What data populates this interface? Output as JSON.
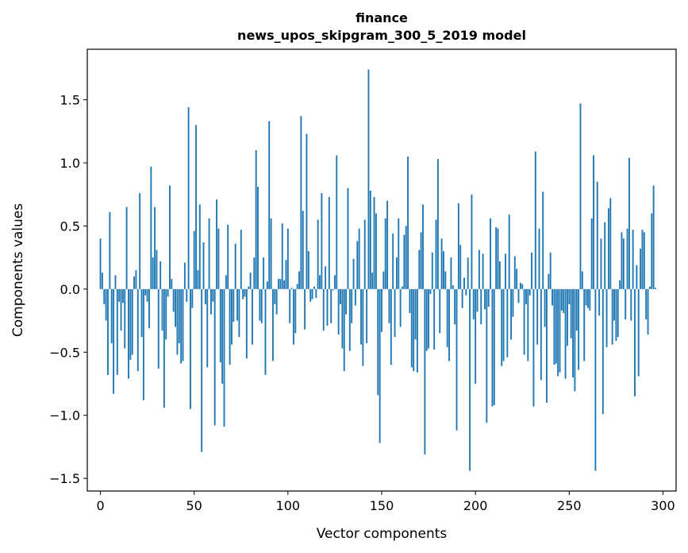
{
  "chart_data": {
    "type": "bar",
    "title_line1": "finance",
    "title_line2": "news_upos_skipgram_300_5_2019 model",
    "xlabel": "Vector components",
    "ylabel": "Components values",
    "xlim": [
      -7,
      307
    ],
    "ylim": [
      -1.6,
      1.9
    ],
    "xticks": [
      0,
      50,
      100,
      150,
      200,
      250,
      300
    ],
    "yticks": [
      -1.5,
      -1.0,
      -0.5,
      0.0,
      0.5,
      1.0,
      1.5
    ],
    "ytick_labels": [
      "−1.5",
      "−1.0",
      "−0.5",
      "0.0",
      "0.5",
      "1.0",
      "1.5"
    ],
    "bar_color": "#1f77b4",
    "values": [
      0.4,
      0.13,
      -0.12,
      -0.25,
      -0.68,
      0.61,
      -0.43,
      -0.83,
      0.11,
      -0.68,
      -0.1,
      -0.33,
      -0.11,
      -0.47,
      0.65,
      -0.71,
      -0.56,
      -0.52,
      0.1,
      0.15,
      -0.65,
      0.76,
      -0.38,
      -0.88,
      -0.05,
      -0.1,
      -0.31,
      0.97,
      0.25,
      0.65,
      0.31,
      -0.63,
      0.22,
      -0.33,
      -0.94,
      -0.4,
      -0.06,
      0.82,
      0.08,
      -0.18,
      -0.3,
      -0.52,
      -0.43,
      -0.59,
      -0.57,
      0.21,
      -0.1,
      1.44,
      -0.95,
      -0.15,
      0.46,
      1.3,
      0.15,
      0.67,
      -1.29,
      0.37,
      -0.12,
      -0.62,
      0.56,
      -0.2,
      -0.1,
      -1.08,
      0.71,
      0.48,
      -0.58,
      -0.75,
      -1.09,
      0.11,
      0.51,
      -0.6,
      -0.44,
      -0.26,
      0.36,
      -0.25,
      -0.38,
      0.47,
      -0.08,
      -0.06,
      -0.55,
      0.02,
      0.13,
      -0.44,
      0.25,
      1.1,
      0.81,
      -0.25,
      -0.27,
      0.25,
      -0.68,
      0.06,
      1.33,
      0.56,
      -0.57,
      -0.12,
      -0.2,
      0.08,
      0.08,
      0.52,
      0.07,
      0.23,
      0.48,
      -0.27,
      0.01,
      -0.44,
      -0.35,
      0.04,
      0.14,
      1.37,
      0.62,
      -0.32,
      1.23,
      0.3,
      -0.1,
      -0.08,
      0.02,
      -0.07,
      0.55,
      0.11,
      0.76,
      -0.33,
      0.18,
      -0.29,
      0.73,
      -0.27,
      -0.01,
      0.11,
      1.06,
      -0.36,
      -0.12,
      -0.47,
      -0.65,
      -0.2,
      0.8,
      -0.49,
      -0.27,
      0.24,
      -0.13,
      0.38,
      0.48,
      -0.44,
      -0.61,
      0.55,
      -0.43,
      1.74,
      0.78,
      0.13,
      0.73,
      0.6,
      -0.84,
      -1.22,
      -0.34,
      0.14,
      0.56,
      0.7,
      -0.27,
      -0.6,
      0.44,
      -0.38,
      0.25,
      0.56,
      -0.3,
      0.02,
      0.43,
      0.5,
      1.05,
      -0.19,
      -0.62,
      -0.65,
      -0.4,
      -0.66,
      0.31,
      0.45,
      0.67,
      -1.31,
      -0.49,
      -0.47,
      -0.04,
      0.29,
      -0.48,
      0.55,
      1.03,
      -0.35,
      0.4,
      0.3,
      0.14,
      -0.46,
      -0.57,
      0.25,
      0.03,
      -0.28,
      -1.12,
      0.68,
      0.35,
      -0.15,
      0.09,
      -0.05,
      0.25,
      -1.44,
      0.75,
      -0.24,
      -0.75,
      -0.18,
      0.31,
      -0.28,
      0.28,
      -0.16,
      -1.06,
      -0.14,
      0.56,
      -0.93,
      -0.92,
      0.49,
      0.48,
      0.22,
      -0.61,
      -0.57,
      0.28,
      -0.54,
      0.59,
      -0.4,
      -0.22,
      0.26,
      0.16,
      -0.11,
      0.05,
      0.04,
      -0.52,
      -0.12,
      -0.57,
      -0.05,
      0.29,
      -0.93,
      1.09,
      -0.44,
      0.48,
      -0.72,
      0.77,
      -0.3,
      -0.9,
      0.12,
      0.29,
      -0.13,
      -0.6,
      -0.59,
      -0.69,
      -0.66,
      -0.17,
      -0.19,
      -0.71,
      -0.45,
      -0.12,
      -0.39,
      -0.7,
      -0.81,
      -0.33,
      -0.64,
      1.47,
      0.14,
      -0.57,
      -0.13,
      -0.15,
      -0.17,
      0.56,
      1.06,
      -1.44,
      0.85,
      -0.21,
      0.4,
      -0.99,
      0.53,
      -0.46,
      0.64,
      0.72,
      -0.44,
      -0.25,
      -0.41,
      -0.38,
      0.07,
      0.45,
      0.4,
      -0.24,
      0.48,
      1.04,
      -0.25,
      0.47,
      -0.85,
      0.19,
      -0.69,
      0.32,
      0.47,
      0.45,
      -0.24,
      -0.36,
      0.02,
      0.6,
      0.82,
      0.01
    ]
  }
}
